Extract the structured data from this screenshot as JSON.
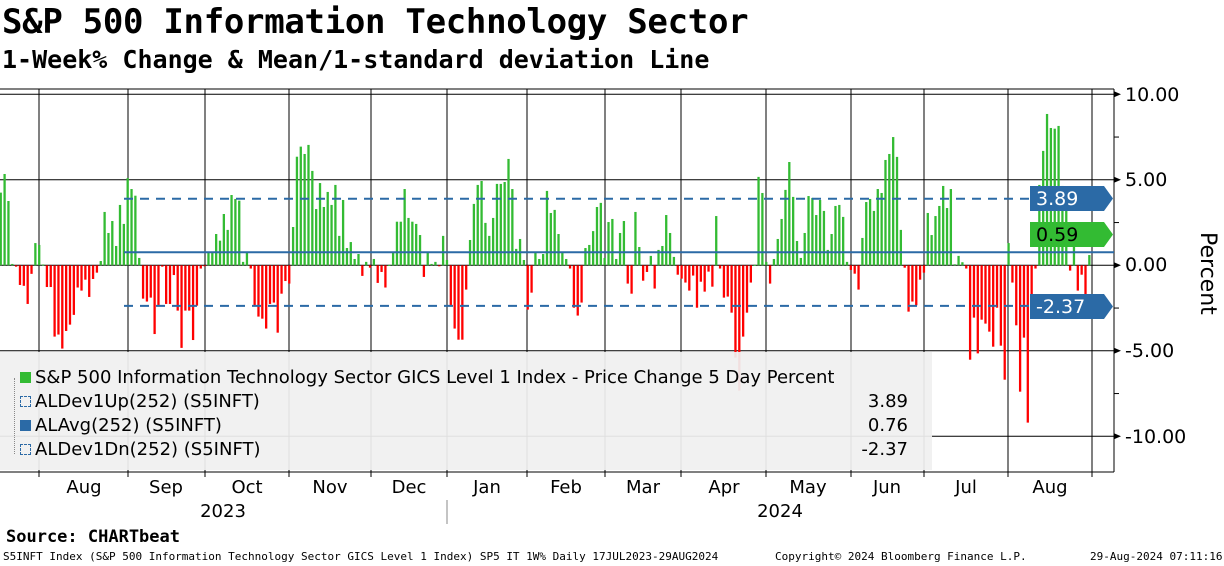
{
  "header": {
    "title": "S&P 500 Information Technology Sector",
    "subtitle": "1-Week% Change & Mean/1-standard deviation Line"
  },
  "chart_data": {
    "type": "bar",
    "title": "S&P 500 Information Technology Sector",
    "subtitle": "1-Week% Change & Mean/1-standard deviation Line",
    "ylabel": "Percent",
    "ylim": [
      -12,
      11
    ],
    "yticks": [
      "10.00",
      "5.00",
      "0.00",
      "-5.00",
      "-10.00"
    ],
    "ytick_values": [
      10,
      5,
      0,
      -5,
      -10
    ],
    "months": [
      "Aug",
      "Sep",
      "Oct",
      "Nov",
      "Dec",
      "Jan",
      "Feb",
      "Mar",
      "Apr",
      "May",
      "Jun",
      "Jul",
      "Aug"
    ],
    "years": [
      "2023",
      "2024"
    ],
    "date_range": "17JUL2023-29AUG2024",
    "positive_color": "#33bb33",
    "negative_color": "#ff0000",
    "line_color": "#2b6aa6",
    "mean": 0.76,
    "dev_up": 3.89,
    "dev_dn": -2.37,
    "last": 0.59,
    "values": [
      4.25,
      5.34,
      3.76,
      0.08,
      -0.08,
      -1.15,
      -1.2,
      -2.26,
      -0.5,
      1.3,
      1.19,
      0.05,
      -1.27,
      -1.27,
      -4.17,
      -4.05,
      -4.87,
      -3.84,
      -3.47,
      -2.9,
      -1.3,
      -1.48,
      -0.84,
      -1.85,
      -0.8,
      -0.43,
      0.25,
      3.12,
      1.89,
      2.59,
      1.13,
      3.53,
      2.42,
      5.1,
      4.46,
      4.07,
      0.43,
      -1.95,
      -2.12,
      -1.89,
      -4.02,
      -2.32,
      -0.08,
      -2.26,
      -2.26,
      -0.57,
      -2.65,
      -4.83,
      -2.65,
      -2.65,
      -4.37,
      -2.36,
      -0.19,
      -0.04,
      0.8,
      0.8,
      1.83,
      1.44,
      3.0,
      2.07,
      4.11,
      3.88,
      3.78,
      0.2,
      0.74,
      -0.19,
      -2.36,
      -3.0,
      -3.12,
      -3.7,
      -2.26,
      -2.18,
      -3.94,
      -1.66,
      -0.92,
      -1.07,
      2.24,
      6.35,
      6.94,
      6.51,
      7.04,
      5.52,
      3.29,
      4.81,
      3.41,
      4.29,
      3.53,
      4.7,
      1.72,
      3.82,
      1.01,
      1.36,
      0.37,
      0.66,
      -0.62,
      0.2,
      -0.14,
      0.37,
      -1.03,
      -0.39,
      -1.3,
      0.02,
      0.8,
      2.55,
      2.55,
      4.46,
      2.77,
      2.55,
      2.42,
      1.77,
      -0.68,
      0.74,
      0.08,
      0.2,
      -0.05,
      1.72,
      0.31,
      -2.32,
      -3.7,
      -4.35,
      -4.35,
      -1.42,
      1.48,
      3.59,
      4.7,
      4.93,
      2.48,
      1.72,
      2.77,
      4.76,
      4.76,
      4.87,
      6.22,
      4.46,
      0.96,
      1.54,
      0.31,
      -2.59,
      -1.6,
      0.78,
      0.37,
      0.66,
      4.35,
      3.06,
      3.24,
      1.83,
      0.78,
      0.37,
      -0.19,
      -2.48,
      -2.94,
      -2.18,
      1.01,
      1.19,
      2.0,
      3.41,
      3.65,
      0.43,
      2.53,
      2.71,
      0.37,
      1.89,
      2.59,
      -1.07,
      -1.66,
      3.12,
      1.07,
      -0.9,
      -0.39,
      0.55,
      -1.36,
      0.9,
      1.13,
      2.94,
      1.89,
      0.49,
      -0.55,
      -0.78,
      -1.01,
      -1.48,
      -0.6,
      -2.48,
      -0.96,
      -1.54,
      -0.37,
      -1.25,
      2.88,
      -0.19,
      -1.89,
      -1.83,
      -2.77,
      -5.4,
      -7.33,
      -4.17,
      -2.77,
      -1.01,
      0.03,
      5.17,
      4.23,
      0.2,
      -1.07,
      0.37,
      1.54,
      2.71,
      4.41,
      6.04,
      4.0,
      1.42,
      0.43,
      1.89,
      4.05,
      3.94,
      2.94,
      3.82,
      3.18,
      0.9,
      1.83,
      3.47,
      3.53,
      2.83,
      0.2,
      -0.27,
      -0.49,
      -1.42,
      1.6,
      3.7,
      3.88,
      3.18,
      4.46,
      4.23,
      6.16,
      6.51,
      7.5,
      6.34,
      2.07,
      -0.14,
      -2.71,
      -2.12,
      -2.34,
      -0.84,
      -0.43,
      3.06,
      1.77,
      2.88,
      3.47,
      4.64,
      3.35,
      4.46,
      0.06,
      0.55,
      0.18,
      -0.19,
      -5.52,
      -3.06,
      -5.15,
      -3.18,
      -3.41,
      -3.88,
      -4.76,
      -2.48,
      -4.7,
      -6.69,
      1.3,
      -1.01,
      -3.51,
      -7.39,
      -4.23,
      -9.2,
      -2.83,
      -0.19,
      4.7,
      6.69,
      8.85,
      8.03,
      7.99,
      8.15,
      4.64,
      4.52,
      -0.31,
      1.07,
      -1.48,
      -0.55,
      -2.34,
      0.6
    ]
  },
  "tags": {
    "dev_up": "3.89",
    "last": "0.59",
    "dev_dn": "-2.37",
    "axis_title": "Percent"
  },
  "legend": [
    {
      "label": "S&P 500 Information Technology Sector GICS Level 1 Index - Price Change 5 Day Percent",
      "value": ""
    },
    {
      "label": "ALDev1Up(252) (S5INFT)",
      "value": "3.89"
    },
    {
      "label": "ALAvg(252) (S5INFT)",
      "value": "0.76"
    },
    {
      "label": "ALDev1Dn(252) (S5INFT)",
      "value": "-2.37"
    }
  ],
  "footer": {
    "source": "Source: CHARTbeat",
    "description": "S5INFT Index (S&P 500 Information Technology Sector GICS Level 1 Index) SP5 IT 1W%  Daily 17JUL2023-29AUG2024",
    "copyright": "Copyright© 2024 Bloomberg Finance L.P.",
    "timestamp": "29-Aug-2024 07:11:16"
  }
}
